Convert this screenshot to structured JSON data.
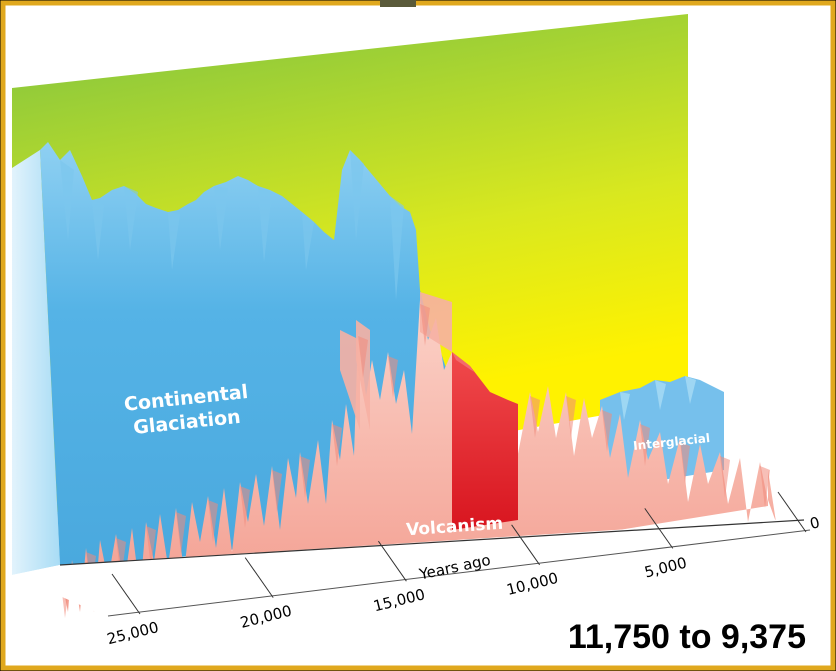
{
  "chart_data": {
    "type": "area",
    "labels": {
      "glaciation": "Continental\nGlaciation",
      "interglacial": "Interglacial",
      "volcanism": "Volcanism",
      "axis_title": "Years ago",
      "range_caption": "11,750 to 9,375"
    },
    "x_ticks": [
      {
        "label": "25,000",
        "value": 25000
      },
      {
        "label": "20,000",
        "value": 20000
      },
      {
        "label": "15,000",
        "value": 15000
      },
      {
        "label": "10,000",
        "value": 10000
      },
      {
        "label": "5,000",
        "value": 5000
      },
      {
        "label": "0",
        "value": 0
      }
    ],
    "highlight_range": [
      11750,
      9375
    ],
    "series": [
      {
        "name": "Continental Glaciation",
        "color": "#5ab4e6"
      },
      {
        "name": "Volcanism",
        "color": "#f4a69b"
      },
      {
        "name": "Interglacial",
        "color": "#76c0ec"
      }
    ],
    "colors": {
      "border": "#e0a81e",
      "wall_top": "#7cc242",
      "wall_mid": "#d9e81f",
      "wall_low": "#fff200",
      "highlight": "#e3262e"
    }
  }
}
